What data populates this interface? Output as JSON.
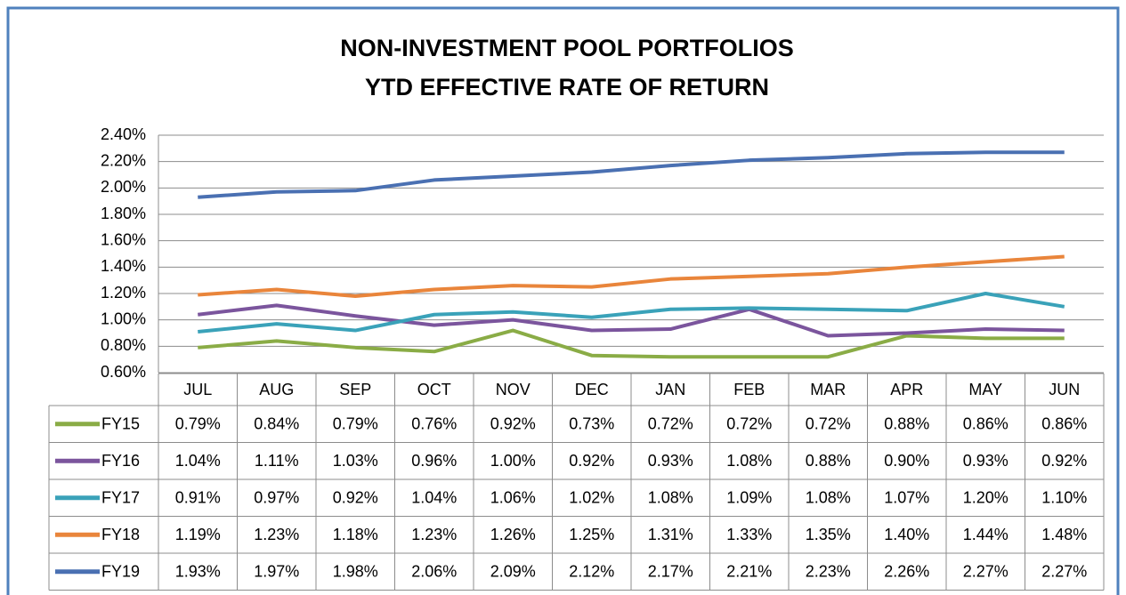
{
  "chart_data": {
    "type": "line",
    "title": "NON-INVESTMENT POOL PORTFOLIOS",
    "subtitle": "YTD EFFECTIVE RATE OF RETURN",
    "categories": [
      "JUL",
      "AUG",
      "SEP",
      "OCT",
      "NOV",
      "DEC",
      "JAN",
      "FEB",
      "MAR",
      "APR",
      "MAY",
      "JUN"
    ],
    "ylim": [
      0.6,
      2.4
    ],
    "yticks": [
      {
        "value": 0.6,
        "label": "0.60%"
      },
      {
        "value": 0.8,
        "label": "0.80%"
      },
      {
        "value": 1.0,
        "label": "1.00%"
      },
      {
        "value": 1.2,
        "label": "1.20%"
      },
      {
        "value": 1.4,
        "label": "1.40%"
      },
      {
        "value": 1.6,
        "label": "1.60%"
      },
      {
        "value": 1.8,
        "label": "1.80%"
      },
      {
        "value": 2.0,
        "label": "2.00%"
      },
      {
        "value": 2.2,
        "label": "2.20%"
      },
      {
        "value": 2.4,
        "label": "2.40%"
      }
    ],
    "grid": true,
    "series": [
      {
        "name": "FY15",
        "color": "#8aac46",
        "values": [
          0.79,
          0.84,
          0.79,
          0.76,
          0.92,
          0.73,
          0.72,
          0.72,
          0.72,
          0.88,
          0.86,
          0.86
        ],
        "value_labels": [
          "0.79%",
          "0.84%",
          "0.79%",
          "0.76%",
          "0.92%",
          "0.73%",
          "0.72%",
          "0.72%",
          "0.72%",
          "0.88%",
          "0.86%",
          "0.86%"
        ]
      },
      {
        "name": "FY16",
        "color": "#7b559d",
        "values": [
          1.04,
          1.11,
          1.03,
          0.96,
          1.0,
          0.92,
          0.93,
          1.08,
          0.88,
          0.9,
          0.93,
          0.92
        ],
        "value_labels": [
          "1.04%",
          "1.11%",
          "1.03%",
          "0.96%",
          "1.00%",
          "0.92%",
          "0.93%",
          "1.08%",
          "0.88%",
          "0.90%",
          "0.93%",
          "0.92%"
        ]
      },
      {
        "name": "FY17",
        "color": "#3aa2b9",
        "values": [
          0.91,
          0.97,
          0.92,
          1.04,
          1.06,
          1.02,
          1.08,
          1.09,
          1.08,
          1.07,
          1.2,
          1.1
        ],
        "value_labels": [
          "0.91%",
          "0.97%",
          "0.92%",
          "1.04%",
          "1.06%",
          "1.02%",
          "1.08%",
          "1.09%",
          "1.08%",
          "1.07%",
          "1.20%",
          "1.10%"
        ]
      },
      {
        "name": "FY18",
        "color": "#e9853b",
        "values": [
          1.19,
          1.23,
          1.18,
          1.23,
          1.26,
          1.25,
          1.31,
          1.33,
          1.35,
          1.4,
          1.44,
          1.48
        ],
        "value_labels": [
          "1.19%",
          "1.23%",
          "1.18%",
          "1.23%",
          "1.26%",
          "1.25%",
          "1.31%",
          "1.33%",
          "1.35%",
          "1.40%",
          "1.44%",
          "1.48%"
        ]
      },
      {
        "name": "FY19",
        "color": "#4a70b2",
        "values": [
          1.93,
          1.97,
          1.98,
          2.06,
          2.09,
          2.12,
          2.17,
          2.21,
          2.23,
          2.26,
          2.27,
          2.27
        ],
        "value_labels": [
          "1.93%",
          "1.97%",
          "1.98%",
          "2.06%",
          "2.09%",
          "2.12%",
          "2.17%",
          "2.21%",
          "2.23%",
          "2.26%",
          "2.27%",
          "2.27%"
        ]
      }
    ]
  }
}
